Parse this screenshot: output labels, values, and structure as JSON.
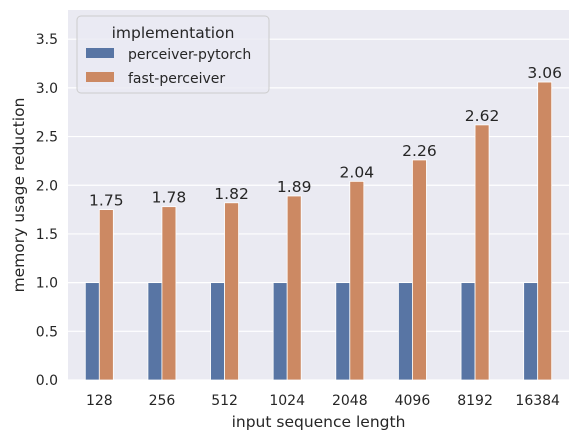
{
  "chart_data": {
    "type": "bar",
    "categories": [
      "128",
      "256",
      "512",
      "1024",
      "2048",
      "4096",
      "8192",
      "16384"
    ],
    "series": [
      {
        "name": "perceiver-pytorch",
        "values": [
          1.0,
          1.0,
          1.0,
          1.0,
          1.0,
          1.0,
          1.0,
          1.0
        ],
        "color": "#5875A4"
      },
      {
        "name": "fast-perceiver",
        "values": [
          1.75,
          1.78,
          1.82,
          1.89,
          2.04,
          2.26,
          2.62,
          3.06
        ],
        "color": "#CC8963"
      }
    ],
    "data_labels": [
      "1.75",
      "1.78",
      "1.82",
      "1.89",
      "2.04",
      "2.26",
      "2.62",
      "3.06"
    ],
    "title": "",
    "xlabel": "input sequence length",
    "ylabel": "memory usage reduction",
    "ylim": [
      0,
      3.8
    ],
    "yticks": [
      "0.0",
      "0.5",
      "1.0",
      "1.5",
      "2.0",
      "2.5",
      "3.0",
      "3.5"
    ],
    "legend_title": "implementation",
    "legend_position": "top-left",
    "grid": true,
    "background_color": "#EAEAF2",
    "grid_color": "#FFFFFF"
  }
}
